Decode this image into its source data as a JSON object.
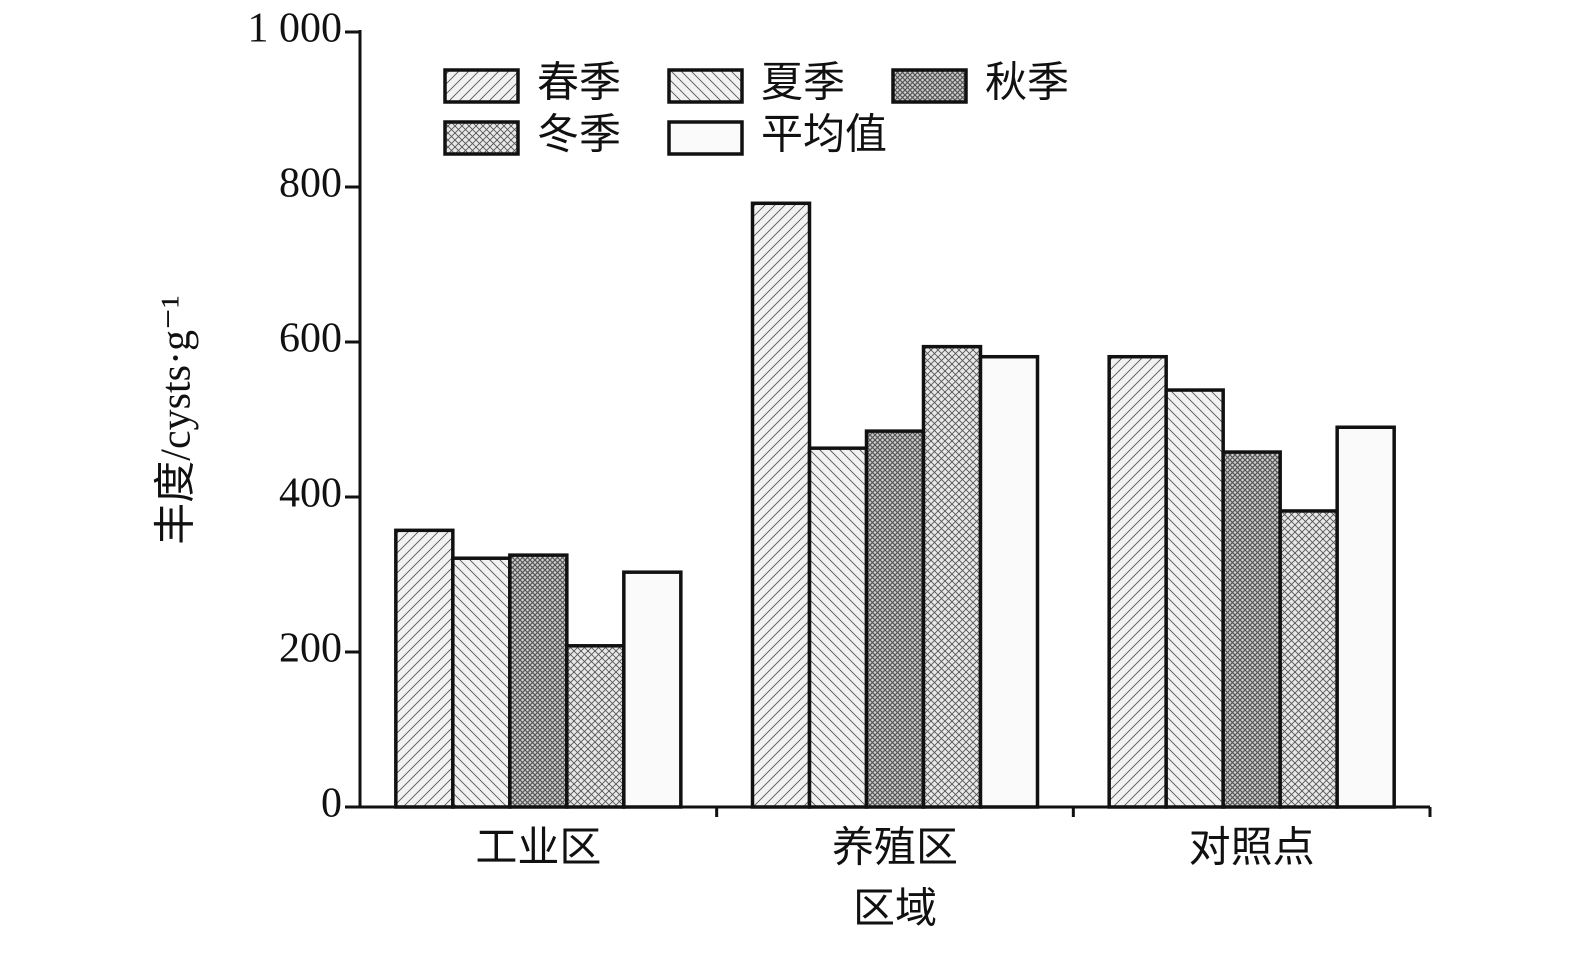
{
  "chart_data": {
    "type": "bar",
    "x_label": "区域",
    "y_label": "丰度/cysts·g⁻¹",
    "categories": [
      "工业区",
      "养殖区",
      "对照点"
    ],
    "series": [
      {
        "name": "春季",
        "color": "#f2f2f2",
        "hatch": "/",
        "values": [
          357,
          779,
          581
        ]
      },
      {
        "name": "夏季",
        "color": "#f2f2f2",
        "hatch": "\\",
        "values": [
          321,
          463,
          538
        ]
      },
      {
        "name": "秋季",
        "color": "#d0d0d0",
        "hatch": "grid",
        "values": [
          325,
          485,
          458
        ]
      },
      {
        "name": "冬季",
        "color": "#e8e8e8",
        "hatch": "cross",
        "values": [
          208,
          594,
          382
        ]
      },
      {
        "name": "平均值",
        "color": "#fafafa",
        "hatch": "none",
        "values": [
          303,
          581,
          490
        ]
      }
    ],
    "ylim": [
      0,
      1000
    ],
    "yticks": [
      0,
      200,
      400,
      600,
      800,
      {
        "value": 1000,
        "label": "1 000"
      }
    ],
    "legend": "upper-left"
  }
}
